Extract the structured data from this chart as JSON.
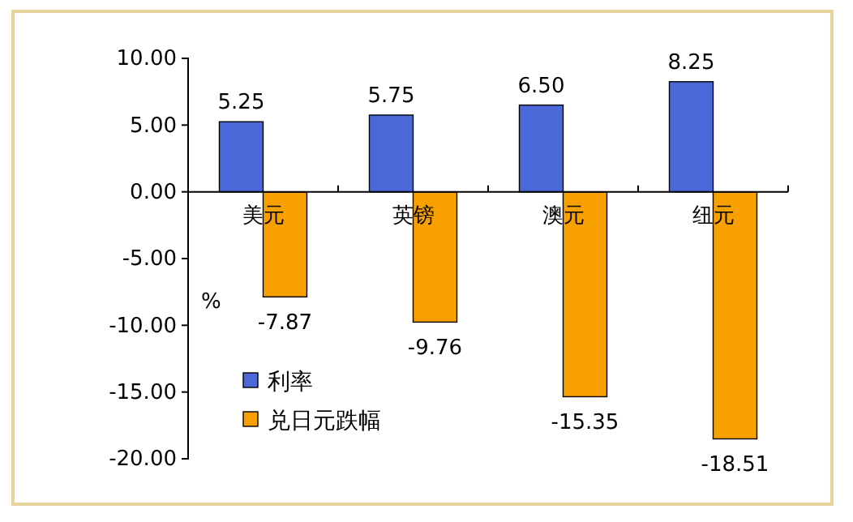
{
  "chart_data": {
    "type": "bar",
    "ylabel": "%",
    "categories": [
      "美元",
      "英镑",
      "澳元",
      "纽元"
    ],
    "series": [
      {
        "name": "利率",
        "color": "#4a68d8",
        "values": [
          5.25,
          5.75,
          6.5,
          8.25
        ],
        "value_labels": [
          "5.25",
          "5.75",
          "6.50",
          "8.25"
        ]
      },
      {
        "name": "兑日元跌幅",
        "color": "#f8a000",
        "values": [
          -7.87,
          -9.76,
          -15.35,
          -18.51
        ],
        "value_labels": [
          "-7.87",
          "-9.76",
          "-15.35",
          "-18.51"
        ]
      }
    ],
    "ylim": [
      -20,
      10
    ],
    "yticks": [
      {
        "value": 10,
        "label": "10.00"
      },
      {
        "value": 5,
        "label": "5.00"
      },
      {
        "value": 0,
        "label": "0.00"
      },
      {
        "value": -5,
        "label": "-5.00"
      },
      {
        "value": -10,
        "label": "-10.00"
      },
      {
        "value": -15,
        "label": "-15.00"
      },
      {
        "value": -20,
        "label": "-20.00"
      }
    ],
    "grid": false,
    "legend": "bottom left"
  }
}
